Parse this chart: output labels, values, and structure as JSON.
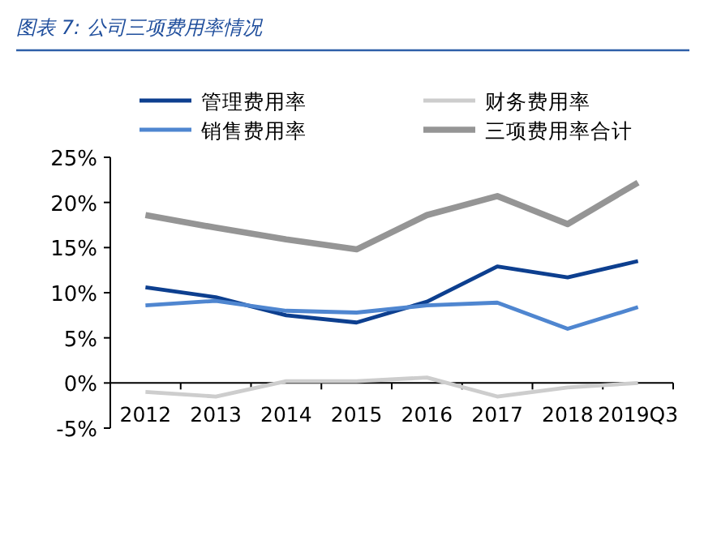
{
  "chart_data": {
    "type": "line",
    "title": "图表 7:  公司三项费用率情况",
    "categories": [
      "2012",
      "2013",
      "2014",
      "2015",
      "2016",
      "2017",
      "2018",
      "2019Q3"
    ],
    "series": [
      {
        "name": "管理费用率",
        "color": "#0d3f8f",
        "values": [
          10.6,
          9.5,
          7.5,
          6.7,
          9.0,
          12.9,
          11.7,
          13.5
        ]
      },
      {
        "name": "财务费用率",
        "color": "#cdcdcd",
        "values": [
          -1.0,
          -1.5,
          0.2,
          0.2,
          0.6,
          -1.5,
          -0.5,
          0.0
        ]
      },
      {
        "name": "销售费用率",
        "color": "#4f86d0",
        "values": [
          8.6,
          9.1,
          8.0,
          7.8,
          8.6,
          8.9,
          6.0,
          8.4
        ]
      },
      {
        "name": "三项费用率合计",
        "color": "#959595",
        "values": [
          18.6,
          17.2,
          15.9,
          14.8,
          18.6,
          20.7,
          17.6,
          22.2
        ]
      }
    ],
    "ylim": [
      -5,
      25
    ],
    "yticks": [
      {
        "value": -5,
        "label": "-5%"
      },
      {
        "value": 0,
        "label": "0%"
      },
      {
        "value": 5,
        "label": "5%"
      },
      {
        "value": 10,
        "label": "10%"
      },
      {
        "value": 15,
        "label": "15%"
      },
      {
        "value": 20,
        "label": "20%"
      },
      {
        "value": 25,
        "label": "25%"
      }
    ],
    "legend": "top",
    "grid": false,
    "marker": "none",
    "line_style": "solid"
  }
}
